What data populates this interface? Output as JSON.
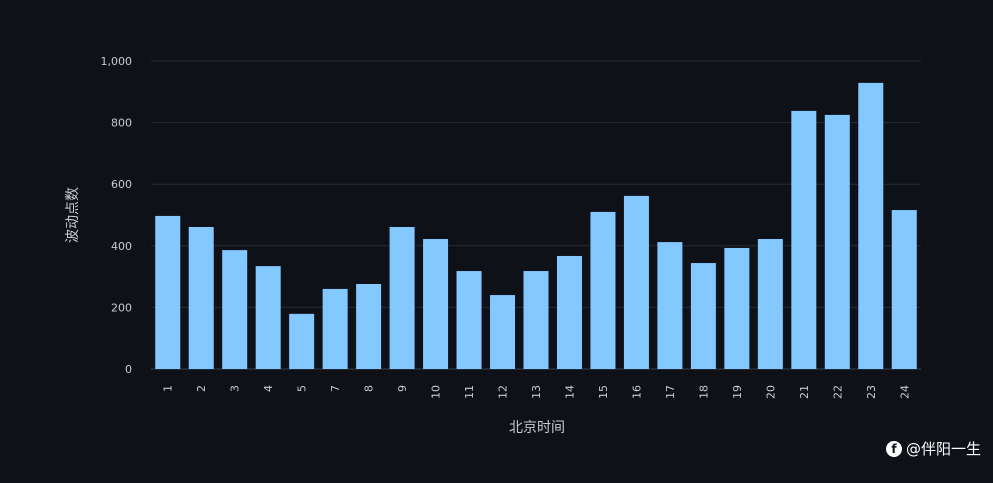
{
  "chart_data": {
    "type": "bar",
    "title": "",
    "xlabel": "北京时间",
    "ylabel": "波动点数",
    "categories": [
      "1",
      "2",
      "3",
      "4",
      "5",
      "7",
      "8",
      "9",
      "10",
      "11",
      "12",
      "13",
      "14",
      "15",
      "16",
      "17",
      "18",
      "19",
      "20",
      "21",
      "22",
      "23",
      "24"
    ],
    "values": [
      497,
      461,
      386,
      334,
      179,
      260,
      276,
      461,
      422,
      318,
      240,
      318,
      367,
      510,
      562,
      412,
      344,
      393,
      422,
      838,
      825,
      929,
      516
    ],
    "ylim": [
      0,
      1000
    ],
    "yticks": [
      0,
      200,
      400,
      600,
      800,
      1000
    ],
    "ytick_labels": [
      "0",
      "200",
      "400",
      "600",
      "800",
      "1,000"
    ],
    "grid": true,
    "bar_color": "#83c9ff"
  },
  "watermark": {
    "text": "@伴阳一生",
    "icon": "facebook-icon"
  }
}
